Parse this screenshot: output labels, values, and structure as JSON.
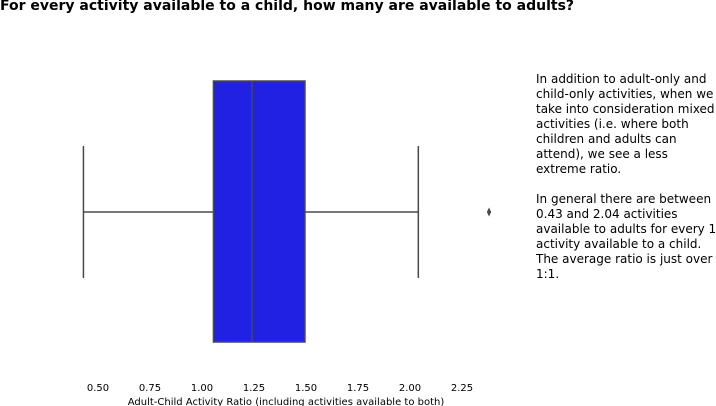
{
  "chart_data": {
    "type": "box",
    "title": "For every activity available to a child, how many are available to adults?",
    "xlabel": "Adult-Child Activity Ratio (including activities available to both)",
    "ylabel": "",
    "xlim": [
      0.38,
      2.72
    ],
    "ticks": [
      "0.50",
      "0.75",
      "1.00",
      "1.25",
      "1.50",
      "1.75",
      "2.00",
      "2.25"
    ],
    "tick_values": [
      0.5,
      0.75,
      1.0,
      1.25,
      1.5,
      1.75,
      2.0,
      2.25
    ],
    "box": {
      "whisker_low": 0.43,
      "q1": 1.055,
      "median": 1.24,
      "q3": 1.495,
      "whisker_high": 2.04,
      "outliers": [
        2.38
      ]
    },
    "colors": {
      "box_fill": "#2121e3",
      "lines": "#4a4a4a",
      "outlier": "#4a4a4a"
    },
    "grid": false
  },
  "annotation": {
    "paragraph1": "In addition to adult-only and child-only activities, when we take into consideration mixed activities (i.e. where both children and adults can attend), we see a less extreme ratio.",
    "paragraph2": "In general there are between 0.43 and 2.04 activities available to adults for every 1 activity available to a child. The average ratio is just over 1:1."
  }
}
